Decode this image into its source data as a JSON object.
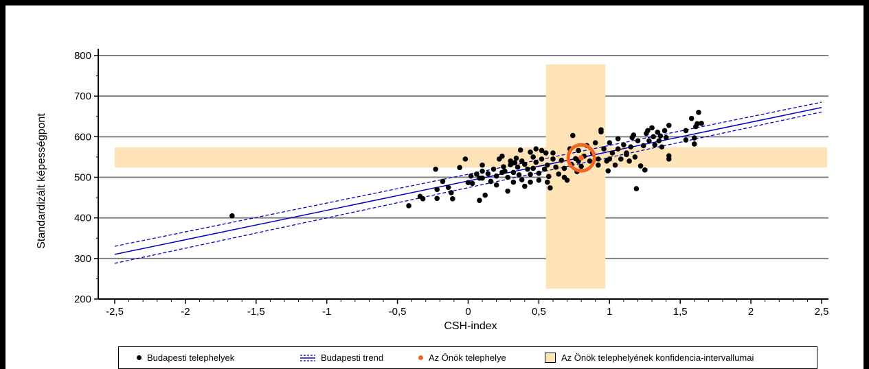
{
  "chart_data": {
    "type": "scatter",
    "xlabel": "CSH-index",
    "ylabel": "Standardizált képességpont",
    "xlim": [
      -2.5,
      2.5
    ],
    "ylim": [
      200,
      800
    ],
    "x_ticks": [
      "-2,5",
      "-2",
      "-1,5",
      "-1",
      "-0,5",
      "0",
      "0,5",
      "1",
      "1,5",
      "2",
      "2,5"
    ],
    "y_ticks": [
      "200",
      "300",
      "400",
      "500",
      "600",
      "700",
      "800"
    ],
    "grid": "horizontal",
    "legend_position": "bottom",
    "colors": {
      "points": "#000000",
      "trend": "#0000cc",
      "site": "#f26522",
      "confidence": "#fde3b5",
      "grid": "#808080"
    },
    "trend": {
      "name": "Budapesti trend",
      "x": [
        -2.5,
        2.5
      ],
      "y": [
        310,
        672
      ],
      "lower": [
        288,
        661
      ],
      "upper": [
        330,
        685
      ]
    },
    "site": {
      "name": "Az Önök telephelye",
      "x": 0.8,
      "y": 548
    },
    "confidence_interval": {
      "name": "Az Önök telephelyének konfidencia-intervallumai",
      "x_range": [
        0.55,
        0.97
      ],
      "y_range": [
        524,
        574
      ]
    },
    "points": {
      "name": "Budapesti telephelyek",
      "data": [
        [
          -1.67,
          405
        ],
        [
          -0.42,
          430
        ],
        [
          -0.34,
          453
        ],
        [
          -0.32,
          447
        ],
        [
          -0.23,
          520
        ],
        [
          -0.22,
          470
        ],
        [
          -0.22,
          448
        ],
        [
          -0.18,
          490
        ],
        [
          -0.14,
          475
        ],
        [
          -0.12,
          462
        ],
        [
          -0.11,
          447
        ],
        [
          -0.06,
          524
        ],
        [
          -0.02,
          545
        ],
        [
          0.0,
          487
        ],
        [
          0.02,
          503
        ],
        [
          0.03,
          485
        ],
        [
          0.06,
          508
        ],
        [
          0.08,
          443
        ],
        [
          0.1,
          530
        ],
        [
          0.1,
          515
        ],
        [
          0.1,
          498
        ],
        [
          0.12,
          456
        ],
        [
          0.14,
          509
        ],
        [
          0.16,
          490
        ],
        [
          0.18,
          520
        ],
        [
          0.2,
          503
        ],
        [
          0.2,
          481
        ],
        [
          0.22,
          545
        ],
        [
          0.24,
          552
        ],
        [
          0.25,
          526
        ],
        [
          0.26,
          515
        ],
        [
          0.28,
          500
        ],
        [
          0.28,
          466
        ],
        [
          0.3,
          540
        ],
        [
          0.3,
          531
        ],
        [
          0.32,
          512
        ],
        [
          0.32,
          488
        ],
        [
          0.34,
          547
        ],
        [
          0.35,
          525
        ],
        [
          0.36,
          506
        ],
        [
          0.37,
          567
        ],
        [
          0.38,
          540
        ],
        [
          0.38,
          494
        ],
        [
          0.4,
          532
        ],
        [
          0.4,
          478
        ],
        [
          0.42,
          520
        ],
        [
          0.44,
          507
        ],
        [
          0.44,
          488
        ],
        [
          0.46,
          550
        ],
        [
          0.46,
          522
        ],
        [
          0.48,
          570
        ],
        [
          0.48,
          537
        ],
        [
          0.5,
          510
        ],
        [
          0.5,
          493
        ],
        [
          0.52,
          566
        ],
        [
          0.52,
          545
        ],
        [
          0.54,
          520
        ],
        [
          0.55,
          560
        ],
        [
          0.56,
          530
        ],
        [
          0.57,
          502
        ],
        [
          0.58,
          474
        ],
        [
          0.6,
          545
        ],
        [
          0.62,
          525
        ],
        [
          0.64,
          508
        ],
        [
          0.66,
          542
        ],
        [
          0.68,
          522
        ],
        [
          0.7,
          493
        ],
        [
          0.72,
          570
        ],
        [
          0.73,
          532
        ],
        [
          0.74,
          603
        ],
        [
          0.76,
          546
        ],
        [
          0.77,
          514
        ],
        [
          0.78,
          540
        ],
        [
          0.8,
          527
        ],
        [
          0.82,
          552
        ],
        [
          0.84,
          578
        ],
        [
          0.86,
          540
        ],
        [
          0.88,
          560
        ],
        [
          0.9,
          585
        ],
        [
          0.92,
          545
        ],
        [
          0.94,
          617
        ],
        [
          0.94,
          612
        ],
        [
          0.96,
          570
        ],
        [
          0.98,
          540
        ],
        [
          0.99,
          516
        ],
        [
          1.0,
          545
        ],
        [
          1.0,
          585
        ],
        [
          1.02,
          560
        ],
        [
          1.04,
          530
        ],
        [
          1.06,
          570
        ],
        [
          1.08,
          545
        ],
        [
          1.1,
          580
        ],
        [
          1.12,
          560
        ],
        [
          1.14,
          540
        ],
        [
          1.15,
          575
        ],
        [
          1.16,
          598
        ],
        [
          1.17,
          604
        ],
        [
          1.18,
          550
        ],
        [
          1.19,
          472
        ],
        [
          1.2,
          590
        ],
        [
          1.22,
          528
        ],
        [
          1.24,
          578
        ],
        [
          1.25,
          518
        ],
        [
          1.26,
          608
        ],
        [
          1.27,
          615
        ],
        [
          1.28,
          590
        ],
        [
          1.3,
          622
        ],
        [
          1.31,
          600
        ],
        [
          1.32,
          580
        ],
        [
          1.34,
          611
        ],
        [
          1.35,
          590
        ],
        [
          1.37,
          575
        ],
        [
          1.39,
          615
        ],
        [
          1.4,
          598
        ],
        [
          1.42,
          628
        ],
        [
          1.42,
          553
        ],
        [
          1.42,
          545
        ],
        [
          1.54,
          615
        ],
        [
          1.54,
          592
        ],
        [
          1.58,
          645
        ],
        [
          1.6,
          597
        ],
        [
          1.6,
          582
        ],
        [
          1.61,
          625
        ],
        [
          1.62,
          632
        ],
        [
          1.63,
          660
        ],
        [
          1.65,
          633
        ],
        [
          0.33,
          536
        ],
        [
          0.6,
          560
        ],
        [
          0.78,
          566
        ],
        [
          1.06,
          595
        ],
        [
          1.36,
          602
        ],
        [
          0.08,
          498
        ],
        [
          0.44,
          562
        ],
        [
          0.24,
          512
        ],
        [
          0.68,
          500
        ],
        [
          1.12,
          556
        ],
        [
          0.56,
          488
        ],
        [
          0.92,
          530
        ]
      ]
    }
  },
  "legend": {
    "points_label": "Budapesti telephelyek",
    "trend_label": "Budapesti trend",
    "site_label": "Az Önök telephelye",
    "confidence_label": "Az Önök telephelyének konfidencia-intervallumai"
  }
}
